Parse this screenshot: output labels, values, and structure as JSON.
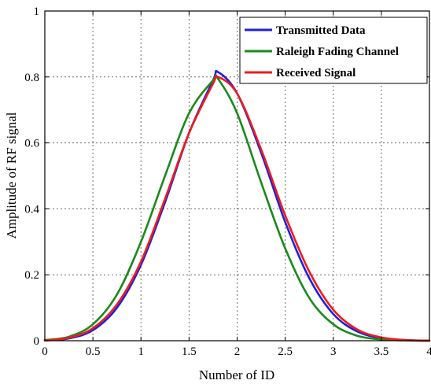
{
  "chart_data": {
    "type": "line",
    "title": "",
    "xlabel": "Number of ID",
    "ylabel": "Amplitude of RF signal",
    "xlim": [
      0,
      4
    ],
    "ylim": [
      0,
      1
    ],
    "xticks": [
      0,
      0.5,
      1,
      1.5,
      2,
      2.5,
      3,
      3.5,
      4
    ],
    "xtick_labels": [
      "0",
      "0.5",
      "1",
      "1.5",
      "2",
      "2.5",
      "3",
      "3.5",
      "4"
    ],
    "yticks": [
      0,
      0.2,
      0.4,
      0.6,
      0.8,
      1
    ],
    "ytick_labels": [
      "0",
      "0.2",
      "0.4",
      "0.6",
      "0.8",
      "1"
    ],
    "grid": true,
    "legend_position": "top-right",
    "x": [
      0,
      0.25,
      0.5,
      0.75,
      1,
      1.25,
      1.5,
      1.75,
      1.8,
      2,
      2.25,
      2.5,
      2.75,
      3,
      3.25,
      3.5,
      3.75,
      4
    ],
    "series": [
      {
        "name": "Transmitted Data",
        "color": "#1f1fe0",
        "values": [
          0.001,
          0.007,
          0.032,
          0.1,
          0.23,
          0.42,
          0.63,
          0.79,
          0.815,
          0.75,
          0.57,
          0.36,
          0.19,
          0.081,
          0.028,
          0.008,
          0.002,
          0.0
        ]
      },
      {
        "name": "Raleigh Fading Channel",
        "color": "#1a8a1a",
        "values": [
          0.002,
          0.012,
          0.05,
          0.14,
          0.3,
          0.5,
          0.69,
          0.79,
          0.795,
          0.69,
          0.48,
          0.28,
          0.13,
          0.05,
          0.015,
          0.004,
          0.001,
          0.0
        ]
      },
      {
        "name": "Received Signal",
        "color": "#ee1c1c",
        "values": [
          0.001,
          0.009,
          0.038,
          0.11,
          0.24,
          0.43,
          0.63,
          0.78,
          0.8,
          0.75,
          0.58,
          0.38,
          0.21,
          0.094,
          0.034,
          0.01,
          0.002,
          0.0
        ]
      }
    ]
  }
}
